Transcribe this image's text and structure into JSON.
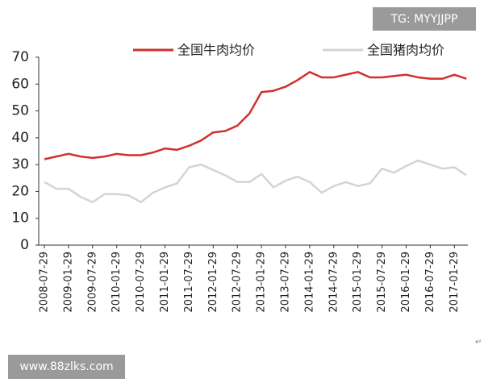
{
  "chart_data": {
    "type": "line",
    "categories": [
      "2008-07-29",
      null,
      "2009-01-29",
      null,
      "2009-07-29",
      null,
      "2010-01-29",
      null,
      "2010-07-29",
      null,
      "2011-01-29",
      null,
      "2011-07-29",
      null,
      "2012-01-29",
      null,
      "2012-07-29",
      null,
      "2013-01-29",
      null,
      "2013-07-29",
      null,
      "2014-01-29",
      null,
      "2014-07-29",
      null,
      "2015-01-29",
      null,
      "2015-07-29",
      null,
      "2016-01-29",
      null,
      "2016-07-29",
      null,
      "2017-01-29",
      null
    ],
    "series": [
      {
        "name": "全国牛肉均价",
        "color": "#d0312d",
        "values": [
          32,
          33,
          34,
          33,
          32.5,
          33,
          34,
          33.5,
          33.5,
          34.5,
          36,
          35.5,
          37,
          39,
          42,
          42.5,
          44.5,
          49,
          57,
          57.5,
          59,
          61.5,
          64.5,
          62.5,
          62.5,
          63.5,
          64.5,
          62.5,
          62.5,
          63,
          63.5,
          62.5,
          62,
          62,
          63.5,
          62
        ]
      },
      {
        "name": "全国猪肉均价",
        "color": "#d4d4d4",
        "values": [
          23.5,
          21,
          21,
          18,
          16,
          19,
          19,
          18.5,
          16,
          19.5,
          21.5,
          23,
          29,
          30,
          28,
          26,
          23.5,
          23.5,
          26.5,
          21.5,
          24,
          25.5,
          23.5,
          19.5,
          22,
          23.5,
          22,
          23,
          28.5,
          27,
          29.5,
          31.5,
          30,
          28.5,
          29,
          26
        ]
      }
    ],
    "ylim": [
      0,
      70
    ],
    "yticks": [
      0,
      10,
      20,
      30,
      40,
      50,
      60,
      70
    ]
  },
  "watermarks": {
    "top": "TG: MYYJJPP",
    "bottom": "www.88zlks.com"
  },
  "return_mark": "↵"
}
